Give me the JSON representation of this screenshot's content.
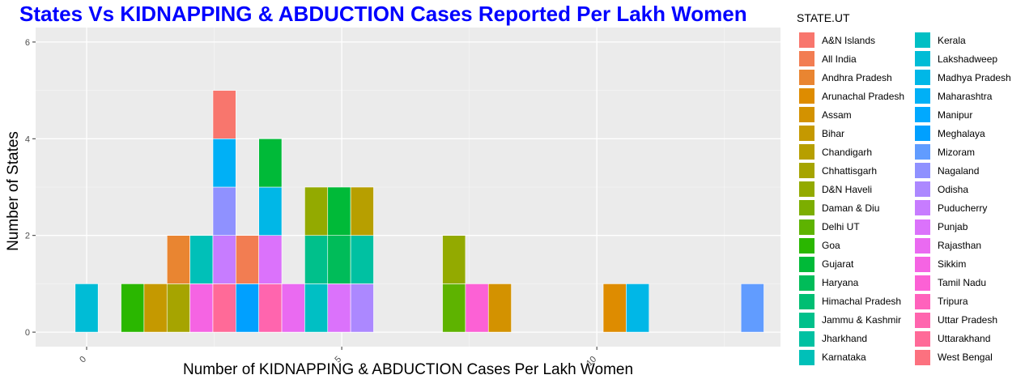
{
  "chart_data": {
    "type": "bar",
    "chart_subtype": "stacked histogram",
    "title": "States Vs KIDNAPPING & ABDUCTION Cases Reported Per Lakh Women",
    "title_color": "#0000ff",
    "xlabel": "Number of KIDNAPPING & ABDUCTION Cases Per Lakh Women",
    "ylabel": "Number of States",
    "xlim": [
      -1.0,
      13.6
    ],
    "ylim": [
      -0.3,
      6.3
    ],
    "x_ticks": [
      0,
      5,
      10
    ],
    "x_tick_labels": [
      "0",
      "5",
      "10"
    ],
    "y_ticks": [
      0,
      2,
      4,
      6
    ],
    "y_tick_labels": [
      "0",
      "2",
      "4",
      "6"
    ],
    "bin_width": 0.45,
    "grid": true,
    "legend_title": "STATE.UT",
    "legend_position": "right",
    "bars": [
      {
        "x": 0.0,
        "segments": [
          {
            "state": "Lakshadweep",
            "count": 1
          }
        ]
      },
      {
        "x": 0.9,
        "segments": [
          {
            "state": "Goa",
            "count": 1
          }
        ]
      },
      {
        "x": 1.35,
        "segments": [
          {
            "state": "Bihar",
            "count": 1
          }
        ]
      },
      {
        "x": 1.8,
        "segments": [
          {
            "state": "Chhattisgarh",
            "count": 1
          },
          {
            "state": "Andhra Pradesh",
            "count": 1
          }
        ]
      },
      {
        "x": 2.25,
        "segments": [
          {
            "state": "Sikkim",
            "count": 1
          },
          {
            "state": "Karnataka",
            "count": 1
          }
        ]
      },
      {
        "x": 2.7,
        "segments": [
          {
            "state": "Uttarakhand",
            "count": 1
          },
          {
            "state": "Puducherry",
            "count": 1
          },
          {
            "state": "Nagaland",
            "count": 1
          },
          {
            "state": "Maharashtra",
            "count": 1
          },
          {
            "state": "A&N Islands",
            "count": 1
          }
        ]
      },
      {
        "x": 3.15,
        "segments": [
          {
            "state": "Meghalaya",
            "count": 1
          },
          {
            "state": "All India",
            "count": 1
          }
        ]
      },
      {
        "x": 3.6,
        "segments": [
          {
            "state": "Uttar Pradesh",
            "count": 1
          },
          {
            "state": "Punjab",
            "count": 1
          },
          {
            "state": "Madhya Pradesh",
            "count": 1
          },
          {
            "state": "Gujarat",
            "count": 1
          }
        ]
      },
      {
        "x": 4.05,
        "segments": [
          {
            "state": "Rajasthan",
            "count": 1
          }
        ]
      },
      {
        "x": 4.5,
        "segments": [
          {
            "state": "Kerala",
            "count": 1
          },
          {
            "state": "Jammu & Kashmir",
            "count": 1
          },
          {
            "state": "D&N Haveli",
            "count": 1
          }
        ]
      },
      {
        "x": 4.95,
        "segments": [
          {
            "state": "Punjab",
            "count": 1
          },
          {
            "state": "Haryana",
            "count": 1
          },
          {
            "state": "Gujarat",
            "count": 1
          }
        ]
      },
      {
        "x": 5.4,
        "segments": [
          {
            "state": "Odisha",
            "count": 1
          },
          {
            "state": "Jharkhand",
            "count": 1
          },
          {
            "state": "Chandigarh",
            "count": 1
          }
        ]
      },
      {
        "x": 7.2,
        "segments": [
          {
            "state": "Delhi UT",
            "count": 1
          },
          {
            "state": "D&N Haveli",
            "count": 1
          }
        ]
      },
      {
        "x": 7.65,
        "segments": [
          {
            "state": "Tamil Nadu",
            "count": 1
          }
        ]
      },
      {
        "x": 8.1,
        "segments": [
          {
            "state": "Assam",
            "count": 1
          }
        ]
      },
      {
        "x": 10.35,
        "segments": [
          {
            "state": "Arunachal Pradesh",
            "count": 1
          }
        ]
      },
      {
        "x": 10.8,
        "segments": [
          {
            "state": "Madhya Pradesh",
            "count": 1
          }
        ]
      },
      {
        "x": 13.05,
        "segments": [
          {
            "state": "Mizoram",
            "count": 1
          }
        ]
      }
    ],
    "legend": [
      {
        "label": "A&N Islands",
        "color": "#F8766D"
      },
      {
        "label": "All India",
        "color": "#F27D52"
      },
      {
        "label": "Andhra Pradesh",
        "color": "#E98531"
      },
      {
        "label": "Arunachal Pradesh",
        "color": "#DE8C00"
      },
      {
        "label": "Assam",
        "color": "#D39200"
      },
      {
        "label": "Bihar",
        "color": "#C59900"
      },
      {
        "label": "Chandigarh",
        "color": "#B79F00"
      },
      {
        "label": "Chhattisgarh",
        "color": "#A6A400"
      },
      {
        "label": "D&N Haveli",
        "color": "#93AA00"
      },
      {
        "label": "Daman & Diu",
        "color": "#7CAE00"
      },
      {
        "label": "Delhi UT",
        "color": "#5EB300"
      },
      {
        "label": "Goa",
        "color": "#2AB700"
      },
      {
        "label": "Gujarat",
        "color": "#00BA38"
      },
      {
        "label": "Haryana",
        "color": "#00BC59"
      },
      {
        "label": "Himachal Pradesh",
        "color": "#00BE73"
      },
      {
        "label": "Jammu & Kashmir",
        "color": "#00C08B"
      },
      {
        "label": "Jharkhand",
        "color": "#00C1A2"
      },
      {
        "label": "Karnataka",
        "color": "#00C0B8"
      },
      {
        "label": "Kerala",
        "color": "#00BFC4"
      },
      {
        "label": "Lakshadweep",
        "color": "#00BCD6"
      },
      {
        "label": "Madhya Pradesh",
        "color": "#00B7E7"
      },
      {
        "label": "Maharashtra",
        "color": "#00B0F6"
      },
      {
        "label": "Manipur",
        "color": "#00A9FF"
      },
      {
        "label": "Meghalaya",
        "color": "#00A0FF"
      },
      {
        "label": "Mizoram",
        "color": "#619CFF"
      },
      {
        "label": "Nagaland",
        "color": "#8F91FF"
      },
      {
        "label": "Odisha",
        "color": "#AC88FF"
      },
      {
        "label": "Puducherry",
        "color": "#C77CFF"
      },
      {
        "label": "Punjab",
        "color": "#DB72FB"
      },
      {
        "label": "Rajasthan",
        "color": "#EA6AF1"
      },
      {
        "label": "Sikkim",
        "color": "#F564E3"
      },
      {
        "label": "Tamil Nadu",
        "color": "#FC61D5"
      },
      {
        "label": "Tripura",
        "color": "#FF62BC"
      },
      {
        "label": "Uttar Pradesh",
        "color": "#FF65AE"
      },
      {
        "label": "Uttarakhand",
        "color": "#FF6A98"
      },
      {
        "label": "West Bengal",
        "color": "#FC717F"
      }
    ]
  }
}
